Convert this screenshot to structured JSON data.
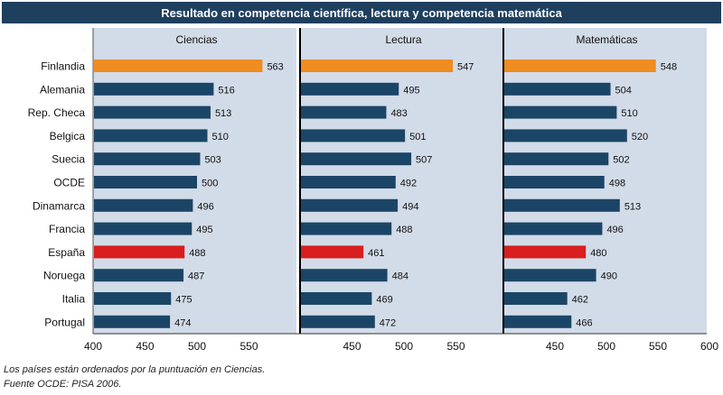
{
  "title": "Resultado en competencia científica, lectura y competencia matemática",
  "colors": {
    "bar": "#1b4566",
    "highlight_finland": "#ef8c22",
    "highlight_spain": "#d81e1e",
    "panel_bg": "#d2dbe8",
    "title_bg": "#1f3f5f"
  },
  "chart_data": {
    "type": "bar",
    "orientation": "horizontal",
    "categories": [
      "Finlandia",
      "Alemania",
      "Rep. Checa",
      "Belgica",
      "Suecia",
      "OCDE",
      "Dinamarca",
      "Francia",
      "España",
      "Noruega",
      "Italia",
      "Portugal"
    ],
    "highlighted": {
      "Finlandia": "highlight_finland",
      "España": "highlight_spain"
    },
    "series": [
      {
        "name": "Ciencias",
        "values": [
          563,
          516,
          513,
          510,
          503,
          500,
          496,
          495,
          488,
          487,
          475,
          474
        ]
      },
      {
        "name": "Lectura",
        "values": [
          547,
          495,
          483,
          501,
          507,
          492,
          494,
          488,
          461,
          484,
          469,
          472
        ]
      },
      {
        "name": "Matemáticas",
        "values": [
          548,
          504,
          510,
          520,
          502,
          498,
          513,
          496,
          480,
          490,
          462,
          466
        ]
      }
    ],
    "panels": [
      {
        "xlim": [
          400,
          600
        ],
        "ticks": [
          "400",
          "450",
          "500",
          "550"
        ]
      },
      {
        "xlim": [
          400,
          600
        ],
        "ticks": [
          "450",
          "500",
          "550"
        ]
      },
      {
        "xlim": [
          400,
          600
        ],
        "ticks": [
          "450",
          "500",
          "550",
          "600"
        ]
      }
    ],
    "grid": false
  },
  "footnotes": [
    "Los países están ordenados por la puntuación en Ciencias.",
    "Fuente OCDE: PISA 2006."
  ]
}
